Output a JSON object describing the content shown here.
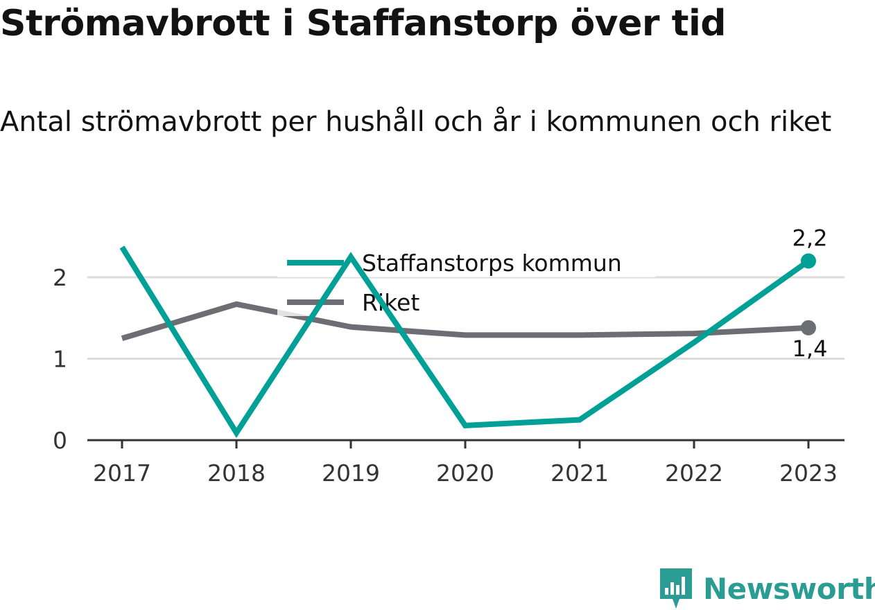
{
  "title": "Strömavbrott i Staffanstorp över tid",
  "subtitle": "Antal strömavbrott per hushåll och år i kommunen och riket",
  "brand": {
    "name": "Newsworthy"
  },
  "colors": {
    "kommun": "#00a096",
    "riket": "#6d6d74",
    "grid": "#dcdcdc",
    "axis": "#333333"
  },
  "chart_data": {
    "type": "line",
    "x": [
      "2017",
      "2018",
      "2019",
      "2020",
      "2021",
      "2022",
      "2023"
    ],
    "ylim": [
      0,
      2.4
    ],
    "yticks": [
      0,
      1,
      2
    ],
    "grid": true,
    "legend_position": "top-center",
    "series": [
      {
        "name": "Staffanstorps kommun",
        "key": "kommun",
        "values": [
          2.37,
          0.09,
          2.25,
          0.18,
          0.25,
          1.2,
          2.2
        ],
        "end_label": "2,2"
      },
      {
        "name": "Riket",
        "key": "riket",
        "values": [
          1.25,
          1.67,
          1.39,
          1.29,
          1.29,
          1.31,
          1.38
        ],
        "end_label": "1,4"
      }
    ]
  }
}
